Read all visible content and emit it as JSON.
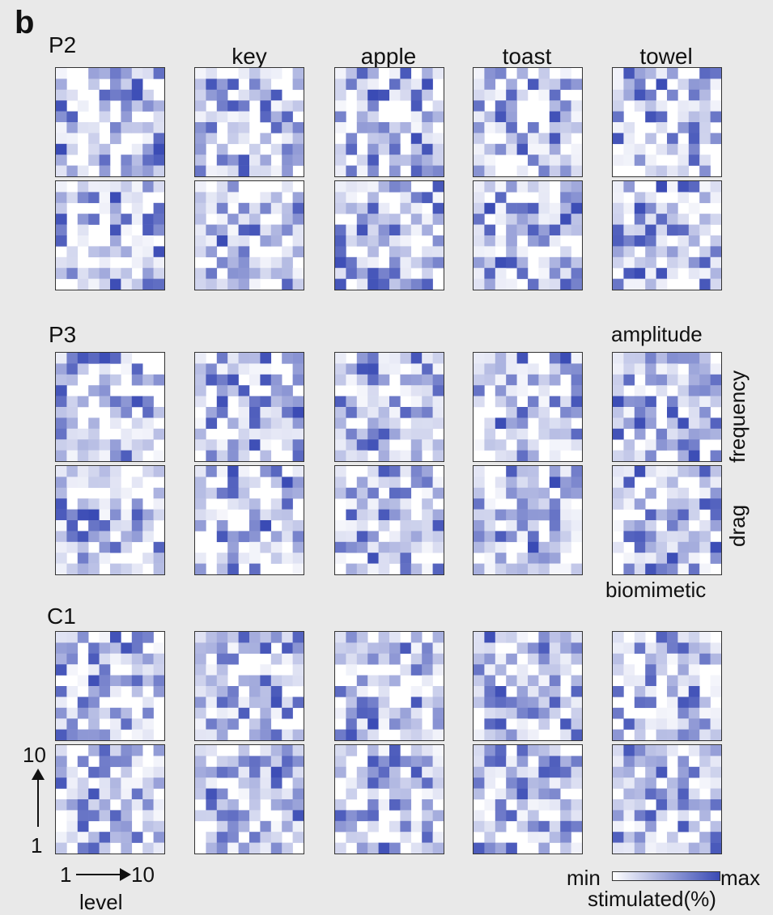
{
  "panel_letter": "b",
  "groups": [
    {
      "label": "P2",
      "condition_labels": []
    },
    {
      "label": "P3",
      "condition_labels": [
        "amplitude",
        "frequency",
        "drag",
        "biomimetic"
      ]
    },
    {
      "label": "C1",
      "condition_labels": []
    }
  ],
  "columns": [
    "key",
    "apple",
    "toast",
    "towel"
  ],
  "axis": {
    "y_top": "10",
    "y_bottom": "1",
    "x_left": "1",
    "x_right": "10",
    "x_label": "level"
  },
  "legend": {
    "min": "min",
    "max": "max",
    "title": "stimulated(%)",
    "color_min": "#ffffff",
    "color_max": "#3a4bb5"
  },
  "chart_data": {
    "type": "heatmap",
    "grid_size": [
      10,
      10
    ],
    "row_groups": [
      "P2",
      "P3",
      "C1"
    ],
    "columns": [
      "",
      "key",
      "apple",
      "toast",
      "towel"
    ],
    "value_scale": "relative (min to max)"
  }
}
